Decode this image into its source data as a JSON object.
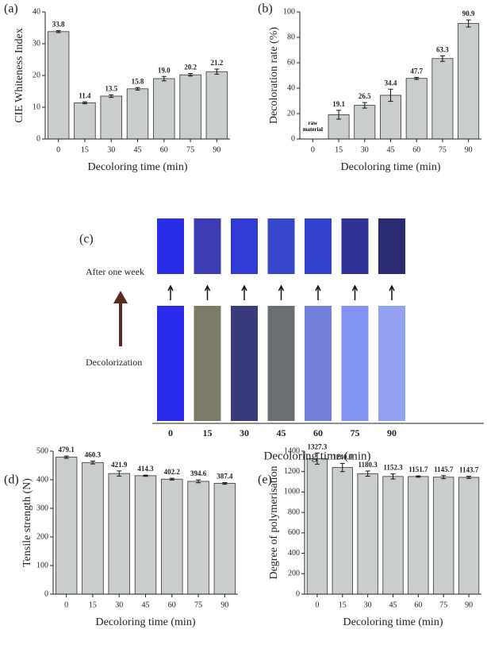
{
  "chart_data": [
    {
      "type": "bar",
      "label": "(a)",
      "ylabel": "CIE Whiteness Index",
      "xlabel": "Decoloring time (min)",
      "categories": [
        "0",
        "15",
        "30",
        "45",
        "60",
        "75",
        "90"
      ],
      "values": [
        33.8,
        11.4,
        13.5,
        15.8,
        19.0,
        20.2,
        21.2
      ],
      "value_labels": [
        "33.8",
        "11.4",
        "13.5",
        "15.8",
        "19.0",
        "20.2",
        "21.2"
      ],
      "errors": [
        0.3,
        0.3,
        0.4,
        0.4,
        0.7,
        0.4,
        0.8
      ],
      "color": "#c9cdcd",
      "ylim": [
        0,
        40
      ],
      "yticks": [
        0,
        10,
        20,
        30,
        40
      ]
    },
    {
      "type": "bar",
      "label": "(b)",
      "ylabel": "Decoloration rate (%)",
      "xlabel": "Decoloring time (min)",
      "categories": [
        "0",
        "15",
        "30",
        "45",
        "60",
        "75",
        "90"
      ],
      "values": [
        null,
        19.1,
        26.5,
        34.4,
        47.7,
        63.3,
        90.9
      ],
      "value_labels": [
        null,
        "19.1",
        "26.5",
        "34.4",
        "47.7",
        "63.3",
        "90.9"
      ],
      "errors": [
        null,
        3.5,
        2.2,
        4.8,
        0.8,
        2.2,
        2.8
      ],
      "annotation": "raw material",
      "color": "#c9cdcd",
      "ylim": [
        0,
        100
      ],
      "yticks": [
        0,
        20,
        40,
        60,
        80,
        100
      ]
    },
    {
      "type": "bar",
      "label": "(d)",
      "ylabel": "Tensile strength (N)",
      "xlabel": "Decoloring time (min)",
      "categories": [
        "0",
        "15",
        "30",
        "45",
        "60",
        "75",
        "90"
      ],
      "values": [
        479.1,
        460.3,
        421.9,
        414.3,
        402.2,
        394.6,
        387.4
      ],
      "value_labels": [
        "479.1",
        "460.3",
        "421.9",
        "414.3",
        "402.2",
        "394.6",
        "387.4"
      ],
      "errors": [
        4,
        5,
        9,
        2,
        3,
        5,
        3
      ],
      "color": "#c9cdcd",
      "ylim": [
        0,
        500
      ],
      "yticks": [
        0,
        100,
        200,
        300,
        400,
        500
      ]
    },
    {
      "type": "bar",
      "label": "(e)",
      "ylabel": "Degree of polymerisation",
      "xlabel": "Decoloring time (min)",
      "categories": [
        "0",
        "15",
        "30",
        "45",
        "60",
        "75",
        "90"
      ],
      "values": [
        1327.3,
        1240.0,
        1180.3,
        1152.3,
        1151.7,
        1145.7,
        1143.7
      ],
      "value_labels": [
        "1327.3",
        "1240.0",
        "1180.3",
        "1152.3",
        "1151.7",
        "1145.7",
        "1143.7"
      ],
      "errors": [
        55,
        40,
        25,
        25,
        6,
        15,
        10
      ],
      "color": "#c9cdcd",
      "ylim": [
        0,
        1400
      ],
      "yticks": [
        0,
        200,
        400,
        600,
        800,
        1000,
        1200,
        1400
      ]
    }
  ],
  "photo_panel": {
    "label": "(c)",
    "row_labels": [
      "After one week",
      "Decolorization"
    ],
    "categories": [
      "0",
      "15",
      "30",
      "45",
      "60",
      "75",
      "90"
    ],
    "xlabel": "Decoloring time (min)"
  }
}
